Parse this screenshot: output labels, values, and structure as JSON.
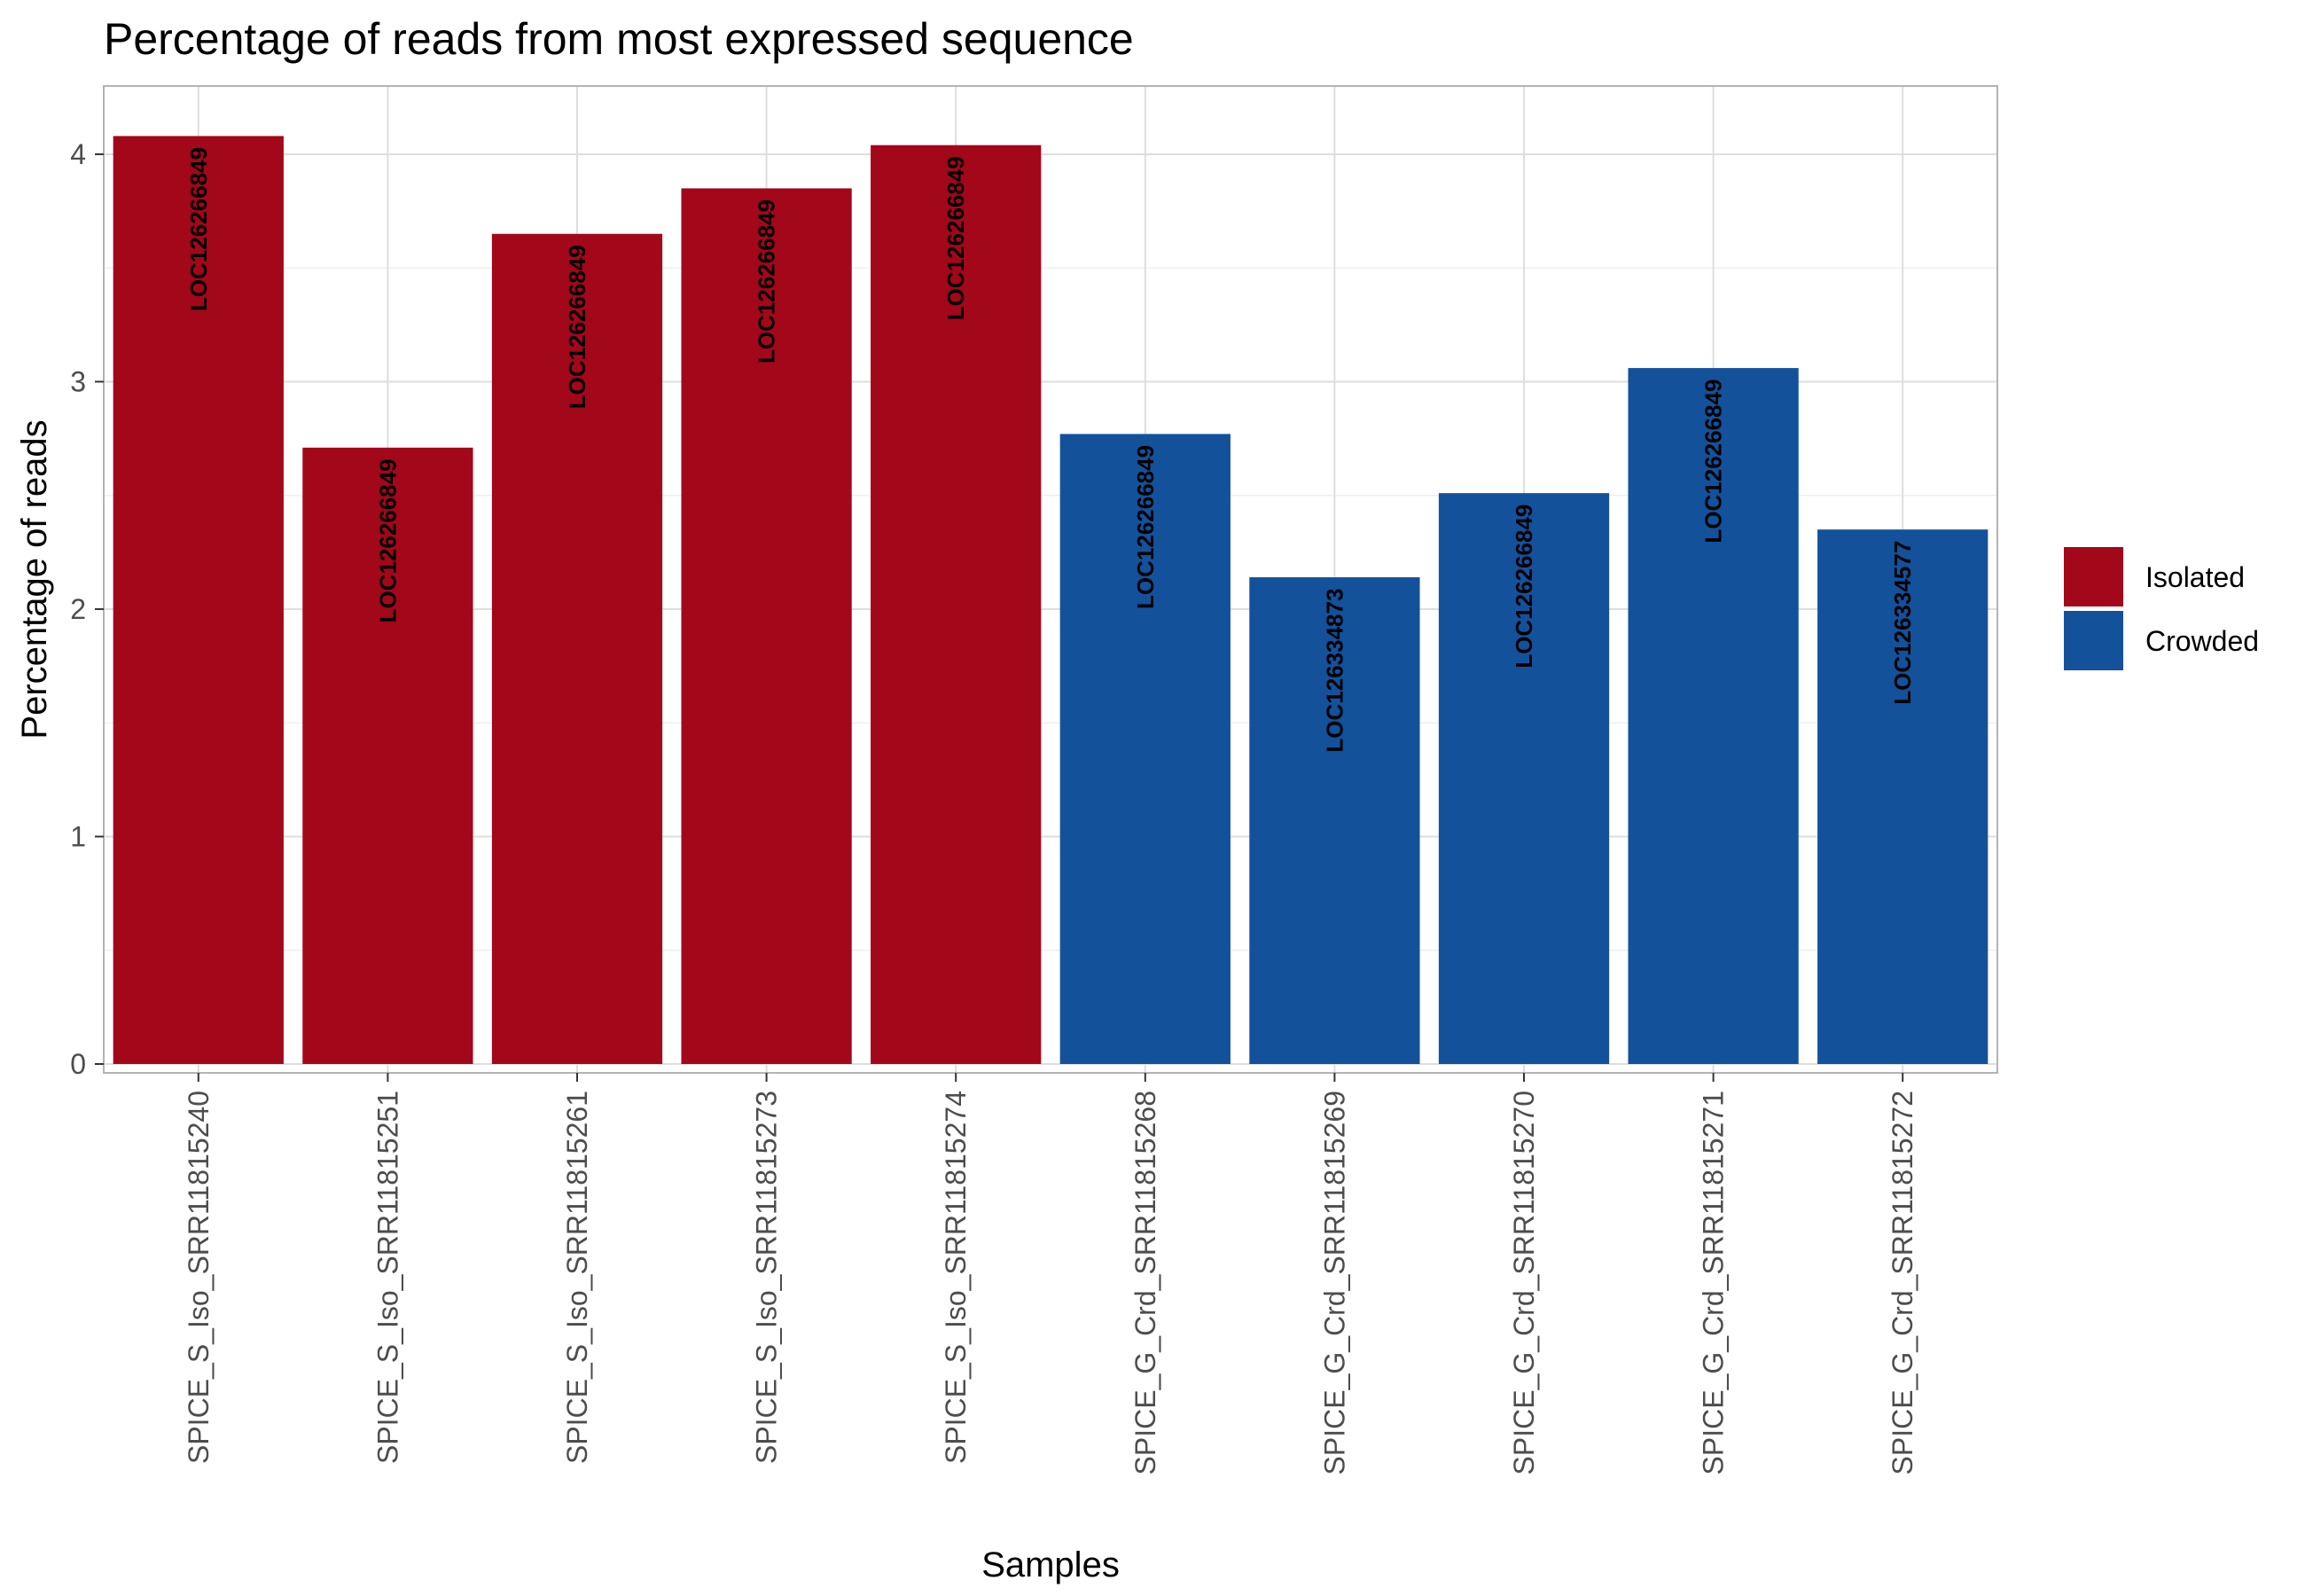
{
  "chart_data": {
    "type": "bar",
    "title": "Percentage of reads from most expressed sequence",
    "xlabel": "Samples",
    "ylabel": "Percentage of reads",
    "ylim": [
      0,
      4.3
    ],
    "yticks": [
      0,
      1,
      2,
      3,
      4
    ],
    "grid": true,
    "legend_position": "right",
    "categories": [
      "SPICE_S_Iso_SRR11815240",
      "SPICE_S_Iso_SRR11815251",
      "SPICE_S_Iso_SRR11815261",
      "SPICE_S_Iso_SRR11815273",
      "SPICE_S_Iso_SRR11815274",
      "SPICE_G_Crd_SRR11815268",
      "SPICE_G_Crd_SRR11815269",
      "SPICE_G_Crd_SRR11815270",
      "SPICE_G_Crd_SRR11815271",
      "SPICE_G_Crd_SRR11815272"
    ],
    "values": [
      4.08,
      2.71,
      3.65,
      3.85,
      4.04,
      2.77,
      2.14,
      2.51,
      3.06,
      2.35
    ],
    "labels": [
      "LOC126266849",
      "LOC126266849",
      "LOC126266849",
      "LOC126266849",
      "LOC126266849",
      "LOC126266849",
      "LOC126334873",
      "LOC126266849",
      "LOC126266849",
      "LOC126334577"
    ],
    "groups": [
      "Isolated",
      "Isolated",
      "Isolated",
      "Isolated",
      "Isolated",
      "Crowded",
      "Crowded",
      "Crowded",
      "Crowded",
      "Crowded"
    ],
    "legend": [
      {
        "name": "Isolated",
        "color": "#A3071A"
      },
      {
        "name": "Crowded",
        "color": "#13519B"
      }
    ]
  }
}
